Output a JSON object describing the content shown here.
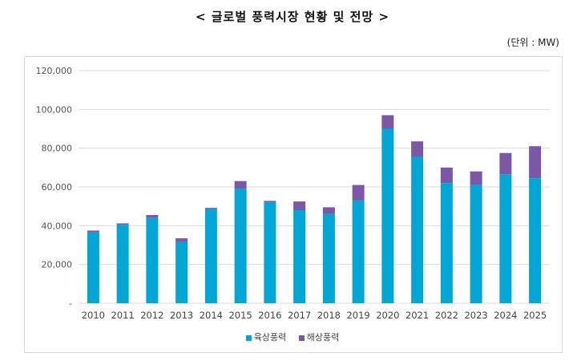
{
  "title": "< 글로벌 풍력시장 현황 및 전망 >",
  "unit_label": "(단위 : MW)",
  "colors": {
    "onshore": "#00a6d6",
    "offshore": "#7b58a6",
    "grid": "#d9d9d9"
  },
  "chart_data": {
    "type": "bar",
    "stacked": true,
    "categories": [
      "2010",
      "2011",
      "2012",
      "2013",
      "2014",
      "2015",
      "2016",
      "2017",
      "2018",
      "2019",
      "2020",
      "2021",
      "2022",
      "2023",
      "2024",
      "2025"
    ],
    "series": [
      {
        "name": "육상풍력",
        "values": [
          36500,
          40500,
          44000,
          31500,
          48500,
          59000,
          52000,
          48000,
          46000,
          53000,
          90000,
          75500,
          62000,
          61000,
          66500,
          64500
        ]
      },
      {
        "name": "해상풍력",
        "values": [
          1000,
          700,
          1500,
          2000,
          700,
          4000,
          800,
          4500,
          3500,
          8000,
          7000,
          8000,
          8000,
          7000,
          11000,
          16500
        ]
      }
    ],
    "ylim": [
      0,
      120000
    ],
    "yticks": [
      0,
      20000,
      40000,
      60000,
      80000,
      100000,
      120000
    ],
    "ytick_labels": [
      "-",
      "20,000",
      "40,000",
      "60,000",
      "80,000",
      "100,000",
      "120,000"
    ],
    "grid": true,
    "legend_position": "bottom"
  }
}
